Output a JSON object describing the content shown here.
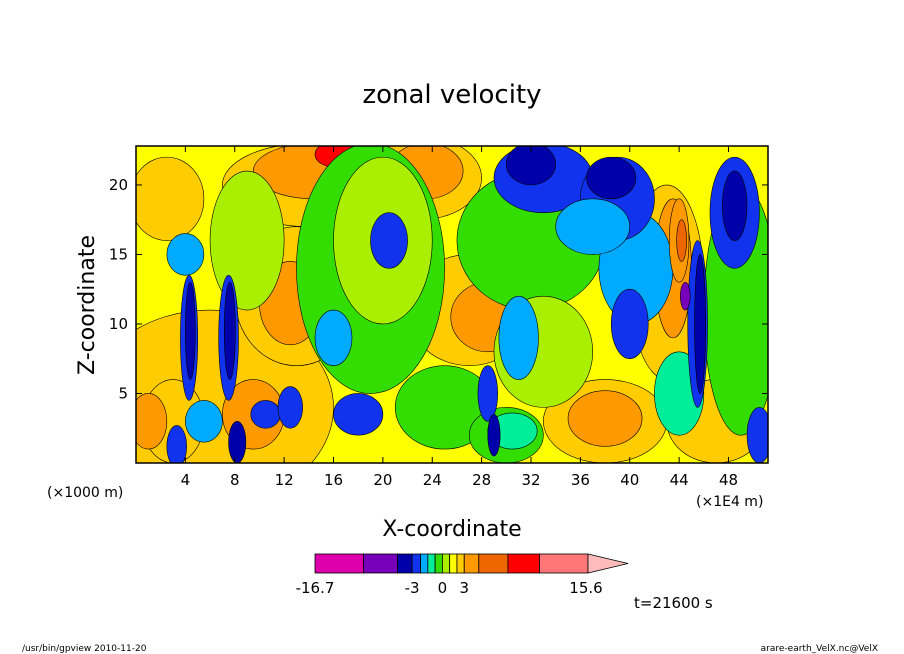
{
  "chart_data": {
    "type": "heatmap",
    "title": "zonal velocity",
    "xlabel": "X-coordinate",
    "ylabel": "Z-coordinate",
    "x_unit_label": "(×1E4 m)",
    "y_unit_label": "(×1000 m)",
    "xlim": [
      0,
      51.2
    ],
    "ylim": [
      0,
      22.8
    ],
    "x_ticks": [
      4,
      8,
      12,
      16,
      20,
      24,
      28,
      32,
      36,
      40,
      44,
      48
    ],
    "y_ticks": [
      5,
      10,
      15,
      20
    ],
    "grid": false,
    "colorbar": {
      "levels": [
        -16.7,
        -3,
        0,
        3,
        15.6
      ],
      "tick_labels": [
        "-16.7",
        "-3",
        "0",
        "3",
        "15.6"
      ],
      "colors": [
        "#dd00aa",
        "#7700bb",
        "#0000aa",
        "#1133ee",
        "#00aaff",
        "#00ee99",
        "#33dd00",
        "#aaee00",
        "#ffff00",
        "#ffcc00",
        "#ff9900",
        "#ee6600",
        "#ff0000",
        "#ff7777",
        "#ffbbbb"
      ]
    },
    "time_label": "t=21600 s",
    "footer_left": "/usr/bin/gpview  2010-11-20",
    "footer_right": "arare-earth_VelX.nc@VelX"
  }
}
